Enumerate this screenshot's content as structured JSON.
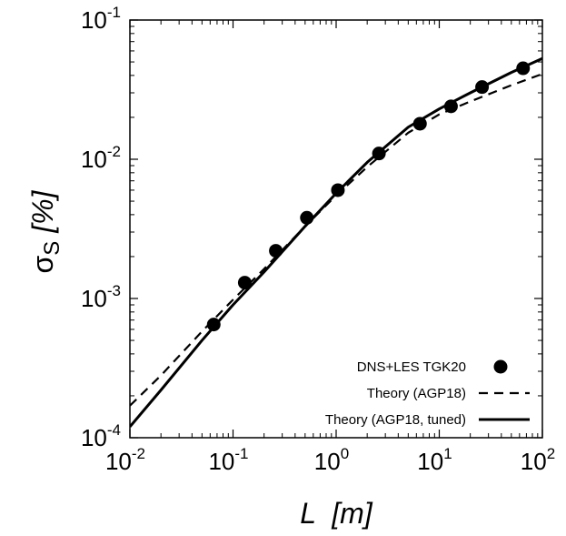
{
  "chart_data": {
    "type": "line",
    "xlabel": "L  [m]",
    "ylabel": "σ",
    "ylabel_subscript": "S",
    "ylabel_unit": " [%]",
    "x_scale": "log",
    "y_scale": "log",
    "xlim": [
      0.01,
      100
    ],
    "ylim": [
      0.0001,
      0.1
    ],
    "grid": false,
    "legend_position": "bottom-right",
    "x_ticks": [
      {
        "base": "10",
        "exp": "-2",
        "value": 0.01
      },
      {
        "base": "10",
        "exp": "-1",
        "value": 0.1
      },
      {
        "base": "10",
        "exp": "0",
        "value": 1
      },
      {
        "base": "10",
        "exp": "1",
        "value": 10
      },
      {
        "base": "10",
        "exp": "2",
        "value": 100
      }
    ],
    "y_ticks": [
      {
        "base": "10",
        "exp": "-4",
        "value": 0.0001
      },
      {
        "base": "10",
        "exp": "-3",
        "value": 0.001
      },
      {
        "base": "10",
        "exp": "-2",
        "value": 0.01
      },
      {
        "base": "10",
        "exp": "-1",
        "value": 0.1
      }
    ],
    "series": [
      {
        "name": "DNS+LES TGK20",
        "style": "points",
        "color": "#000000",
        "x": [
          0.065,
          0.13,
          0.26,
          0.52,
          1.04,
          2.6,
          6.5,
          13,
          26,
          65
        ],
        "y": [
          0.00065,
          0.0013,
          0.0022,
          0.0038,
          0.006,
          0.011,
          0.018,
          0.024,
          0.033,
          0.045
        ]
      },
      {
        "name": "Theory (AGP18)",
        "style": "dashed",
        "color": "#000000",
        "x": [
          0.01,
          0.02,
          0.05,
          0.1,
          0.2,
          0.5,
          1,
          2,
          5,
          10,
          20,
          50,
          100
        ],
        "y": [
          0.00017,
          0.00028,
          0.00058,
          0.00098,
          0.00163,
          0.0033,
          0.0055,
          0.0088,
          0.0155,
          0.021,
          0.026,
          0.034,
          0.041
        ]
      },
      {
        "name": "Theory (AGP18, tuned)",
        "style": "solid",
        "color": "#000000",
        "x": [
          0.01,
          0.02,
          0.05,
          0.1,
          0.2,
          0.5,
          1,
          2,
          5,
          10,
          20,
          50,
          100
        ],
        "y": [
          0.00012,
          0.00022,
          0.0005,
          0.0009,
          0.00155,
          0.0033,
          0.0057,
          0.0095,
          0.017,
          0.023,
          0.03,
          0.042,
          0.053
        ]
      }
    ]
  }
}
